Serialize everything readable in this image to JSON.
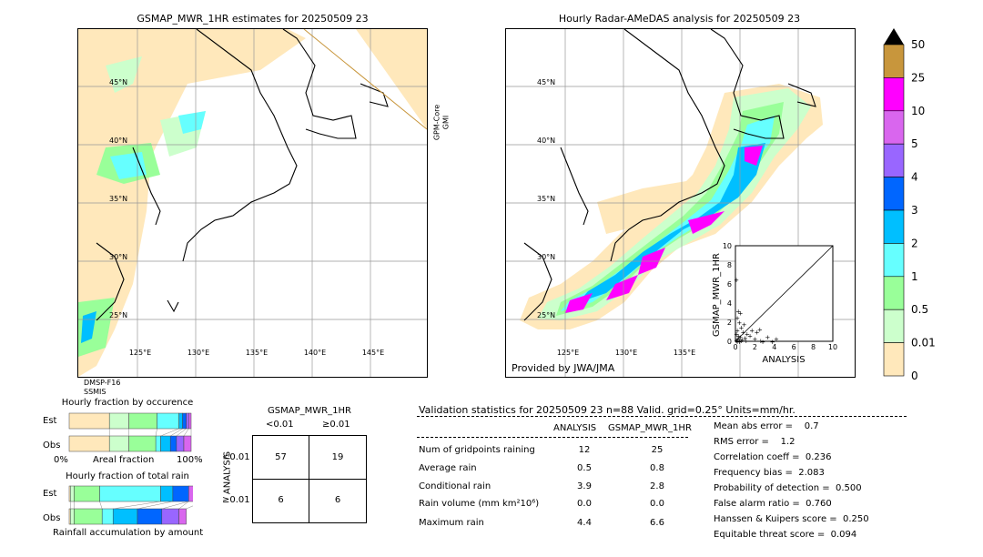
{
  "left_map": {
    "title": "GSMAP_MWR_1HR estimates for 20250509 23",
    "lat_labels": [
      "45°N",
      "40°N",
      "35°N",
      "30°N",
      "25°N"
    ],
    "lon_labels": [
      "125°E",
      "130°E",
      "135°E",
      "140°E",
      "145°E"
    ],
    "swath_label_1": "GPM-Core",
    "swath_label_2": "GMI",
    "sensor_label_1": "DMSP-F16",
    "sensor_label_2": "SSMIS"
  },
  "right_map": {
    "title": "Hourly Radar-AMeDAS analysis for 20250509 23",
    "lat_labels": [
      "45°N",
      "40°N",
      "35°N",
      "30°N",
      "25°N"
    ],
    "lon_labels": [
      "125°E",
      "130°E",
      "135°E"
    ],
    "credit": "Provided by JWA/JMA"
  },
  "colorbar": {
    "labels": [
      "50",
      "25",
      "10",
      "5",
      "4",
      "3",
      "2",
      "1",
      "0.5",
      "0.01",
      "0"
    ],
    "colors": [
      "#c8963c",
      "#ff00ff",
      "#d966ee",
      "#9966ff",
      "#0066ff",
      "#00bfff",
      "#66ffff",
      "#99ff99",
      "#ccffcc",
      "#ffe8bb"
    ],
    "over_color": "#000000"
  },
  "scatter": {
    "xlabel": "ANALYSIS",
    "ylabel": "GSMAP_MWR_1HR",
    "ticks": [
      "0",
      "2",
      "4",
      "6",
      "8",
      "10"
    ]
  },
  "occurrence": {
    "title": "Hourly fraction by occurence",
    "row_est": "Est",
    "row_obs": "Obs",
    "axis_left": "0%",
    "axis_mid": "Areal fraction",
    "axis_right": "100%"
  },
  "total_rain": {
    "title": "Hourly fraction of total rain",
    "row_est": "Est",
    "row_obs": "Obs",
    "axis_label": "Rainfall accumulation by amount"
  },
  "contingency": {
    "title": "GSMAP_MWR_1HR",
    "col1": "<0.01",
    "col2": "≥0.01",
    "row_axis": "ANALYSIS",
    "row1": "<0.01",
    "row2": "≥0.01",
    "cells": [
      "57",
      "19",
      "6",
      "6"
    ]
  },
  "validation": {
    "header": "Validation statistics for 20250509 23  n=88 Valid. grid=0.25° Units=mm/hr.",
    "col_analysis": "ANALYSIS",
    "col_gsmap": "GSMAP_MWR_1HR",
    "rows": [
      {
        "label": "Num of gridpoints raining",
        "a": "12",
        "g": "25"
      },
      {
        "label": "Average rain",
        "a": "0.5",
        "g": "0.8"
      },
      {
        "label": "Conditional rain",
        "a": "3.9",
        "g": "2.8"
      },
      {
        "label": "Rain volume (mm km²10⁶)",
        "a": "0.0",
        "g": "0.0"
      },
      {
        "label": "Maximum rain",
        "a": "4.4",
        "g": "6.6"
      }
    ],
    "scores": [
      "Mean abs error =    0.7",
      "RMS error =    1.2",
      "Correlation coeff =  0.236",
      "Frequency bias =  2.083",
      "Probability of detection =  0.500",
      "False alarm ratio =  0.760",
      "Hanssen & Kuipers score =  0.250",
      "Equitable threat score =  0.094"
    ]
  },
  "chart_data": [
    {
      "type": "scatter",
      "title": "",
      "xlabel": "ANALYSIS",
      "ylabel": "GSMAP_MWR_1HR",
      "xlim": [
        0,
        10
      ],
      "ylim": [
        0,
        10
      ],
      "points": [
        [
          0.1,
          6.5
        ],
        [
          0.3,
          3.2
        ],
        [
          0.5,
          3.0
        ],
        [
          0.2,
          2.5
        ],
        [
          0.4,
          2.0
        ],
        [
          0.6,
          1.5
        ],
        [
          0.2,
          1.2
        ],
        [
          0.8,
          1.0
        ],
        [
          0.1,
          0.8
        ],
        [
          0.3,
          0.6
        ],
        [
          0.5,
          0.5
        ],
        [
          1.0,
          0.4
        ],
        [
          0.2,
          0.3
        ],
        [
          0.4,
          0.2
        ],
        [
          0.6,
          0.1
        ],
        [
          1.2,
          0.8
        ],
        [
          0.9,
          1.8
        ],
        [
          1.5,
          0.6
        ],
        [
          1.7,
          1.2
        ],
        [
          2.2,
          1.0
        ],
        [
          2.5,
          1.3
        ],
        [
          2.0,
          0.3
        ],
        [
          3.3,
          0.5
        ],
        [
          2.6,
          0.1
        ],
        [
          4.2,
          0.3
        ],
        [
          0.7,
          0.2
        ],
        [
          1.1,
          0.1
        ],
        [
          0.1,
          0.1
        ],
        [
          0.2,
          0.0
        ],
        [
          0.4,
          0.0
        ],
        [
          2.8,
          0.0
        ],
        [
          3.8,
          0.0
        ]
      ]
    },
    {
      "type": "bar",
      "title": "Hourly fraction by occurence",
      "categories": [
        "Est",
        "Obs"
      ],
      "series": [
        {
          "color": "#ffe8bb",
          "values": [
            0.33,
            0.33
          ]
        },
        {
          "color": "#ccffcc",
          "values": [
            0.16,
            0.16
          ]
        },
        {
          "color": "#99ff99",
          "values": [
            0.23,
            0.22
          ]
        },
        {
          "color": "#66ffff",
          "values": [
            0.18,
            0.04
          ]
        },
        {
          "color": "#00bfff",
          "values": [
            0.03,
            0.08
          ]
        },
        {
          "color": "#0066ff",
          "values": [
            0.03,
            0.05
          ]
        },
        {
          "color": "#9966ff",
          "values": [
            0.02,
            0.06
          ]
        },
        {
          "color": "#d966ee",
          "values": [
            0.02,
            0.06
          ]
        }
      ]
    },
    {
      "type": "bar",
      "title": "Hourly fraction of total rain",
      "categories": [
        "Est",
        "Obs"
      ],
      "series": [
        {
          "color": "#ffe8bb",
          "values": [
            0.01,
            0.01
          ]
        },
        {
          "color": "#ccffcc",
          "values": [
            0.03,
            0.03
          ]
        },
        {
          "color": "#99ff99",
          "values": [
            0.21,
            0.23
          ]
        },
        {
          "color": "#66ffff",
          "values": [
            0.5,
            0.09
          ]
        },
        {
          "color": "#00bfff",
          "values": [
            0.1,
            0.2
          ]
        },
        {
          "color": "#0066ff",
          "values": [
            0.13,
            0.2
          ]
        },
        {
          "color": "#9966ff",
          "values": [
            0.0,
            0.14
          ]
        },
        {
          "color": "#d966ee",
          "values": [
            0.12,
            0.06
          ]
        }
      ]
    }
  ]
}
